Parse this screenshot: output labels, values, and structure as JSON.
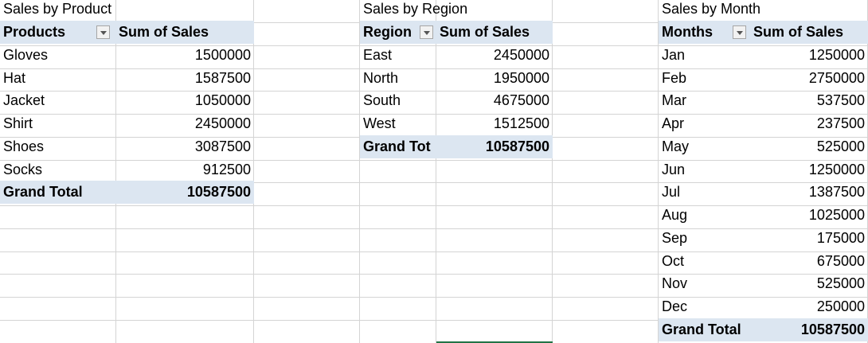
{
  "product": {
    "title": "Sales by Product",
    "header_label": "Products",
    "value_header": "Sum of Sales",
    "rows": [
      {
        "label": "Gloves",
        "value": "1500000"
      },
      {
        "label": "Hat",
        "value": "1587500"
      },
      {
        "label": "Jacket",
        "value": "1050000"
      },
      {
        "label": "Shirt",
        "value": "2450000"
      },
      {
        "label": "Shoes",
        "value": "3087500"
      },
      {
        "label": "Socks",
        "value": "912500"
      }
    ],
    "total_label": "Grand Total",
    "total_value": "10587500"
  },
  "region": {
    "title": "Sales by Region",
    "header_label": "Region",
    "value_header": "Sum of Sales",
    "rows": [
      {
        "label": "East",
        "value": "2450000"
      },
      {
        "label": "North",
        "value": "1950000"
      },
      {
        "label": "South",
        "value": "4675000"
      },
      {
        "label": "West",
        "value": "1512500"
      }
    ],
    "total_label": "Grand Tot",
    "total_value": "10587500"
  },
  "month": {
    "title": "Sales by Month",
    "header_label": "Months",
    "value_header": "Sum of Sales",
    "rows": [
      {
        "label": "Jan",
        "value": "1250000"
      },
      {
        "label": "Feb",
        "value": "2750000"
      },
      {
        "label": "Mar",
        "value": "537500"
      },
      {
        "label": "Apr",
        "value": "237500"
      },
      {
        "label": "May",
        "value": "525000"
      },
      {
        "label": "Jun",
        "value": "1250000"
      },
      {
        "label": "Jul",
        "value": "1387500"
      },
      {
        "label": "Aug",
        "value": "1025000"
      },
      {
        "label": "Sep",
        "value": "175000"
      },
      {
        "label": "Oct",
        "value": "675000"
      },
      {
        "label": "Nov",
        "value": "525000"
      },
      {
        "label": "Dec",
        "value": "250000"
      }
    ],
    "total_label": "Grand Total",
    "total_value": "10587500"
  },
  "colors": {
    "header_fill": "#dce6f1",
    "gridline": "#d4d4d4",
    "selection": "#217346"
  }
}
